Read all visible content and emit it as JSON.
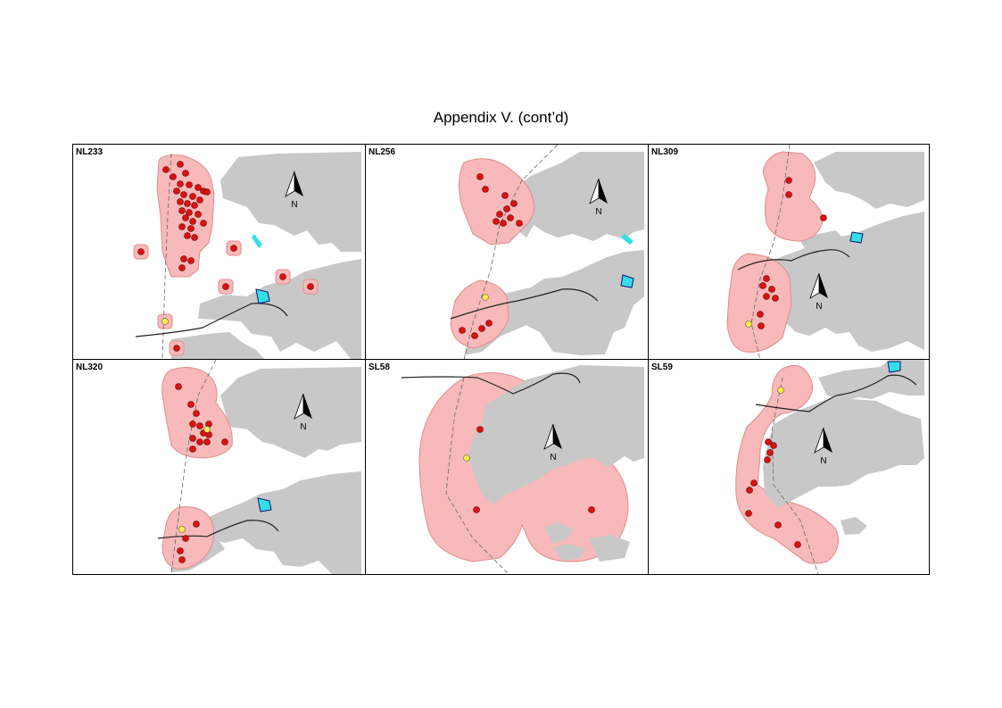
{
  "header": {
    "title": "Appendix V.  (cont’d)"
  },
  "legend_colors": {
    "land": "#c8c8c8",
    "range": "#f7b9b9",
    "range_edge": "#e08c8c",
    "location": "#dd1111",
    "location_alt": "#ffee44",
    "facility": "#33dfe6"
  },
  "north_arrow": {
    "label": "N"
  },
  "panels": [
    {
      "id": "NL233",
      "label": "NL233"
    },
    {
      "id": "NL256",
      "label": "NL256"
    },
    {
      "id": "NL309",
      "label": "NL309"
    },
    {
      "id": "NL320",
      "label": "NL320"
    },
    {
      "id": "SL58",
      "label": "SL58"
    },
    {
      "id": "SL59",
      "label": "SL59"
    }
  ]
}
